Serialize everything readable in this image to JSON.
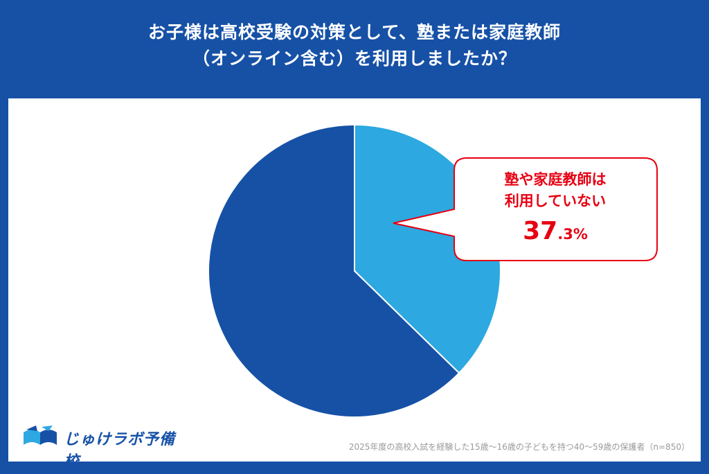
{
  "title": {
    "line1": "お子様は高校受験の対策として、塾または家庭教師",
    "line2": "（オンライン含む）を利用しましたか？"
  },
  "chart_data": {
    "type": "pie",
    "slices": [
      {
        "label": "塾や家庭教師は利用していない",
        "value": 37.3,
        "color": "#2DA8E0"
      },
      {
        "label": "",
        "value": 62.7,
        "color": "#1651A6"
      }
    ],
    "annotation": {
      "line1": "塾や家庭教師は",
      "line2": "利用していない",
      "value_main": "37",
      "value_suffix": ".3%"
    }
  },
  "logo": {
    "text": "じゅけラボ予備校"
  },
  "footnote": "2025年度の高校入試を経験した15歳～16歳の子どもを持つ40～59歳の保護者（n=850）",
  "colors": {
    "background": "#1651A6",
    "accent": "#2DA8E0",
    "callout": "#E60012"
  }
}
